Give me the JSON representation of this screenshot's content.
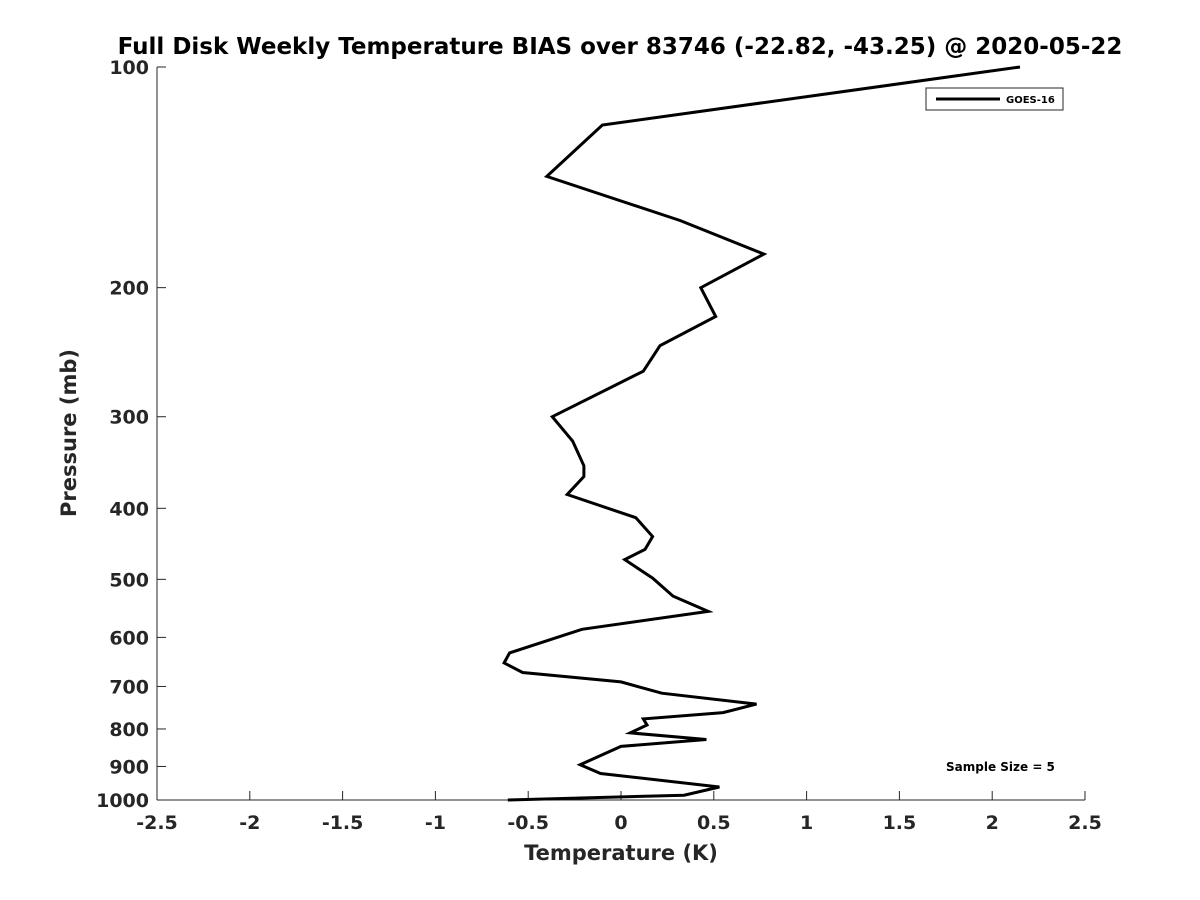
{
  "chart_data": {
    "type": "line",
    "title": "Full Disk Weekly Temperature BIAS over 83746 (-22.82, -43.25) @ 2020-05-22",
    "xlabel": "Temperature (K)",
    "ylabel": "Pressure (mb)",
    "xlim": [
      -2.5,
      2.5
    ],
    "ylim": [
      100,
      1000
    ],
    "y_scale": "log",
    "y_reversed": true,
    "grid": false,
    "legend_position": "top-right",
    "xticks": [
      -2.5,
      -2,
      -1.5,
      -1,
      -0.5,
      0,
      0.5,
      1,
      1.5,
      2,
      2.5
    ],
    "xtick_labels": [
      "-2.5",
      "-2",
      "-1.5",
      "-1",
      "-0.5",
      "0",
      "0.5",
      "1",
      "1.5",
      "2",
      "2.5"
    ],
    "yticks": [
      100,
      200,
      300,
      400,
      500,
      600,
      700,
      800,
      900,
      1000
    ],
    "ytick_labels": [
      "100",
      "200",
      "300",
      "400",
      "500",
      "600",
      "700",
      "800",
      "900",
      "1000"
    ],
    "series": [
      {
        "name": "GOES-16",
        "color": "#000000",
        "x": [
          2.15,
          -0.1,
          -0.4,
          0.32,
          0.77,
          0.43,
          0.51,
          0.21,
          0.12,
          -0.37,
          -0.26,
          -0.2,
          -0.2,
          -0.29,
          0.08,
          0.17,
          0.13,
          0.02,
          0.17,
          0.28,
          0.47,
          -0.21,
          -0.6,
          -0.63,
          -0.53,
          0.0,
          0.22,
          0.73,
          0.55,
          0.12,
          0.14,
          0.05,
          0.46,
          0.0,
          -0.22,
          -0.11,
          0.53,
          0.34,
          -0.61
        ],
        "y": [
          100,
          120,
          141,
          162,
          180,
          200,
          219,
          240,
          260,
          300,
          324,
          350,
          362,
          383,
          412,
          437,
          455,
          470,
          498,
          527,
          553,
          585,
          630,
          650,
          670,
          690,
          715,
          740,
          760,
          775,
          790,
          810,
          827,
          845,
          895,
          920,
          960,
          985,
          1000
        ]
      }
    ],
    "annotation": "Sample Size = 5"
  }
}
